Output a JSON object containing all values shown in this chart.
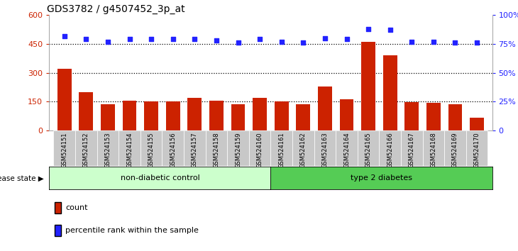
{
  "title": "GDS3782 / g4507452_3p_at",
  "samples": [
    "GSM524151",
    "GSM524152",
    "GSM524153",
    "GSM524154",
    "GSM524155",
    "GSM524156",
    "GSM524157",
    "GSM524158",
    "GSM524159",
    "GSM524160",
    "GSM524161",
    "GSM524162",
    "GSM524163",
    "GSM524164",
    "GSM524165",
    "GSM524166",
    "GSM524167",
    "GSM524168",
    "GSM524169",
    "GSM524170"
  ],
  "counts": [
    320,
    200,
    138,
    155,
    152,
    152,
    168,
    155,
    135,
    170,
    152,
    135,
    230,
    162,
    460,
    390,
    148,
    145,
    138,
    65
  ],
  "percentiles": [
    82,
    79,
    77,
    79,
    79,
    79,
    79,
    78,
    76,
    79,
    77,
    76,
    80,
    79,
    88,
    87,
    77,
    77,
    76,
    76
  ],
  "non_diabetic_count": 10,
  "bar_color": "#cc2200",
  "dot_color": "#2222ff",
  "tick_color_left": "#cc2200",
  "tick_color_right": "#2222ff",
  "ylim_left": [
    0,
    600
  ],
  "ylim_right": [
    0,
    100
  ],
  "yticks_left": [
    0,
    150,
    300,
    450,
    600
  ],
  "ytick_labels_left": [
    "0",
    "150",
    "300",
    "450",
    "600"
  ],
  "yticks_right": [
    0,
    25,
    50,
    75,
    100
  ],
  "ytick_labels_right": [
    "0",
    "25%",
    "50%",
    "75%",
    "100%"
  ],
  "disease_label": "disease state",
  "group1_label": "non-diabetic control",
  "group2_label": "type 2 diabetes",
  "legend_count": "count",
  "legend_pct": "percentile rank within the sample",
  "group1_color": "#ccffcc",
  "group2_color": "#55cc55",
  "xticklabel_bg": "#c8c8c8",
  "grid_dotted_color": "#000000"
}
